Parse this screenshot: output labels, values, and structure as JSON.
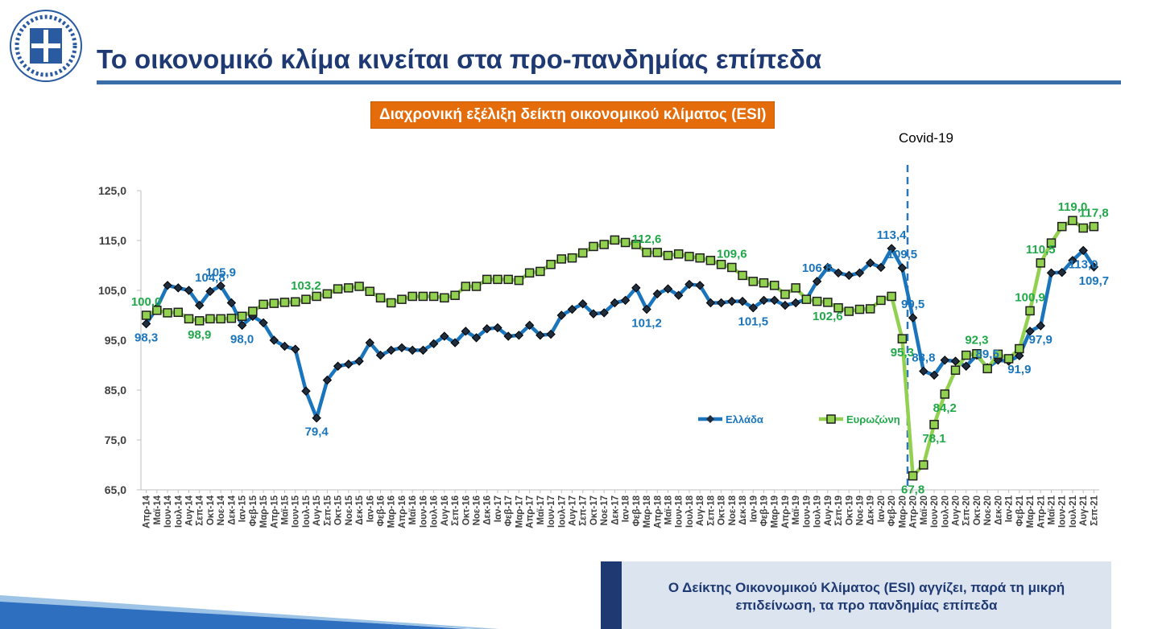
{
  "header": {
    "title": "Το οικονομικό κλίμα κινείται στα προ-πανδημίας επίπεδα"
  },
  "callout": {
    "text": "Ο Δείκτης Οικονομικού Κλίματος (ESI) αγγίζει, παρά τη μικρή επιδείνωση, τα προ πανδημίας επίπεδα"
  },
  "chart_data": {
    "type": "line",
    "title": "Διαχρονική εξέλιξη δείκτη οικονομικού κλίματος (ESI)",
    "annotation": "Covid-19",
    "categories": [
      "Απρ-14",
      "Μαϊ-14",
      "Ιουν-14",
      "Ιουλ-14",
      "Αυγ-14",
      "Σεπ-14",
      "Οκτ-14",
      "Νοε-14",
      "Δεκ-14",
      "Ιαν-15",
      "Φεβ-15",
      "Μαρ-15",
      "Απρ-15",
      "Μαϊ-15",
      "Ιουν-15",
      "Ιουλ-15",
      "Αυγ-15",
      "Σεπ-15",
      "Οκτ-15",
      "Νοε-15",
      "Δεκ-15",
      "Ιαν-16",
      "Φεβ-16",
      "Μαρ-16",
      "Απρ-16",
      "Μαϊ-16",
      "Ιουν-16",
      "Ιουλ-16",
      "Αυγ-16",
      "Σεπ-16",
      "Οκτ-16",
      "Νοε-16",
      "Δεκ-16",
      "Ιαν-17",
      "Φεβ-17",
      "Μαρ-17",
      "Απρ-17",
      "Μαϊ-17",
      "Ιουν-17",
      "Ιουλ-17",
      "Αυγ-17",
      "Σεπ-17",
      "Οκτ-17",
      "Νοε-17",
      "Δεκ-17",
      "Ιαν-18",
      "Φεβ-18",
      "Μαρ-18",
      "Απρ-18",
      "Μαϊ-18",
      "Ιουν-18",
      "Ιουλ-18",
      "Αυγ-18",
      "Σεπ-18",
      "Οκτ-18",
      "Νοε-18",
      "Δεκ-18",
      "Ιαν-19",
      "Φεβ-19",
      "Μαρ-19",
      "Απρ-19",
      "Μαϊ-19",
      "Ιουν-19",
      "Ιουλ-19",
      "Αυγ-19",
      "Σεπ-19",
      "Οκτ-19",
      "Νοε-19",
      "Δεκ-19",
      "Ιαν-20",
      "Φεβ-20",
      "Μαρ-20",
      "Απρ-20",
      "Μαϊ-20",
      "Ιουν-20",
      "Ιουλ-20",
      "Αυγ-20",
      "Σεπ-20",
      "Οκτ-20",
      "Νοε-20",
      "Δεκ-20",
      "Ιαν-21",
      "Φεβ-21",
      "Μαρ-21",
      "Απρ-21",
      "Μαϊ-21",
      "Ιουν-21",
      "Ιουλ-21",
      "Αυγ-21",
      "Σεπ-21"
    ],
    "series": [
      {
        "name": "Ελλάδα",
        "color": "#1a75bc",
        "label_color": "#1a75bc",
        "values": [
          98.3,
          101.5,
          106.0,
          105.5,
          105.0,
          102.0,
          104.8,
          105.9,
          102.5,
          98.0,
          99.8,
          98.5,
          95.0,
          93.8,
          93.2,
          84.8,
          79.4,
          87.0,
          89.8,
          90.2,
          90.8,
          94.5,
          92.0,
          93.0,
          93.5,
          93.0,
          93.0,
          94.3,
          95.8,
          94.5,
          96.8,
          95.5,
          97.3,
          97.5,
          95.8,
          96.0,
          98.0,
          96.0,
          96.2,
          100.0,
          101.2,
          102.3,
          100.3,
          100.5,
          102.5,
          103.0,
          105.5,
          101.2,
          104.3,
          105.3,
          104.0,
          106.2,
          106.0,
          102.5,
          102.5,
          102.8,
          102.8,
          101.5,
          103.0,
          103.0,
          102.0,
          102.5,
          103.2,
          106.8,
          109.6,
          108.5,
          108.0,
          108.5,
          110.5,
          109.6,
          113.4,
          109.5,
          99.5,
          88.8,
          88.0,
          91.0,
          90.8,
          89.8,
          92.0,
          89.5,
          91.0,
          90.8,
          91.9,
          96.8,
          97.9,
          108.5,
          108.6,
          111.0,
          113.0,
          109.7
        ],
        "value_labels": [
          "98,3",
          null,
          null,
          null,
          null,
          null,
          "104,8",
          "105,9",
          null,
          "98,0",
          null,
          null,
          null,
          null,
          null,
          null,
          "79,4",
          null,
          null,
          null,
          null,
          null,
          null,
          null,
          null,
          null,
          null,
          null,
          null,
          null,
          null,
          null,
          null,
          null,
          null,
          null,
          null,
          null,
          null,
          null,
          null,
          null,
          null,
          null,
          null,
          null,
          null,
          "101,2",
          null,
          null,
          null,
          null,
          null,
          null,
          null,
          null,
          null,
          "101,5",
          null,
          null,
          null,
          null,
          null,
          "106,8",
          null,
          null,
          null,
          null,
          null,
          null,
          "113,4",
          "109,5",
          "99,5",
          "88,8",
          null,
          null,
          null,
          null,
          null,
          "89,5",
          null,
          null,
          "91,9",
          null,
          "97,9",
          null,
          null,
          null,
          "113,0",
          "109,7"
        ]
      },
      {
        "name": "Ευρωζώνη",
        "color": "#92d050",
        "label_color": "#21a84a",
        "values": [
          100.0,
          101.0,
          100.5,
          100.6,
          99.3,
          98.9,
          99.3,
          99.3,
          99.4,
          99.8,
          100.8,
          102.2,
          102.4,
          102.6,
          102.7,
          103.2,
          103.8,
          104.3,
          105.3,
          105.5,
          105.8,
          104.8,
          103.5,
          102.5,
          103.2,
          103.8,
          103.8,
          103.8,
          103.5,
          104.0,
          105.8,
          105.8,
          107.2,
          107.2,
          107.2,
          107.0,
          108.5,
          108.8,
          110.2,
          111.3,
          111.5,
          112.5,
          113.8,
          114.2,
          115.1,
          114.6,
          114.2,
          112.6,
          112.6,
          112.0,
          112.3,
          111.8,
          111.5,
          111.0,
          110.2,
          109.6,
          108.0,
          106.8,
          106.5,
          106.0,
          104.2,
          105.5,
          103.2,
          102.8,
          102.6,
          101.5,
          100.8,
          101.2,
          101.3,
          103.0,
          103.8,
          95.3,
          67.8,
          70.0,
          78.1,
          84.2,
          89.0,
          92.0,
          92.3,
          89.3,
          92.2,
          91.3,
          93.3,
          100.9,
          110.5,
          114.5,
          117.8,
          119.0,
          117.5,
          117.8
        ],
        "value_labels": [
          "100,0",
          null,
          null,
          null,
          null,
          "98,9",
          null,
          null,
          null,
          null,
          null,
          null,
          null,
          null,
          null,
          "103,2",
          null,
          null,
          null,
          null,
          null,
          null,
          null,
          null,
          null,
          null,
          null,
          null,
          null,
          null,
          null,
          null,
          null,
          null,
          null,
          null,
          null,
          null,
          null,
          null,
          null,
          null,
          null,
          null,
          null,
          null,
          null,
          "112,6",
          null,
          null,
          null,
          null,
          null,
          null,
          null,
          "109,6",
          null,
          null,
          null,
          null,
          null,
          null,
          null,
          null,
          "102,6",
          null,
          null,
          null,
          null,
          null,
          null,
          "95,3",
          "67,8",
          null,
          "78,1",
          "84,2",
          null,
          null,
          "92,3",
          null,
          null,
          null,
          null,
          "100,9",
          "110,5",
          null,
          null,
          "119,0",
          null,
          "117,8"
        ]
      }
    ],
    "ylim": [
      65,
      125
    ],
    "yticks": [
      {
        "value": 65,
        "label": "65,0"
      },
      {
        "value": 75,
        "label": "75,0"
      },
      {
        "value": 85,
        "label": "85,0"
      },
      {
        "value": 95,
        "label": "95,0"
      },
      {
        "value": 105,
        "label": "105,0"
      },
      {
        "value": 115,
        "label": "115,0"
      },
      {
        "value": 125,
        "label": "125,0"
      }
    ],
    "grid": false
  }
}
